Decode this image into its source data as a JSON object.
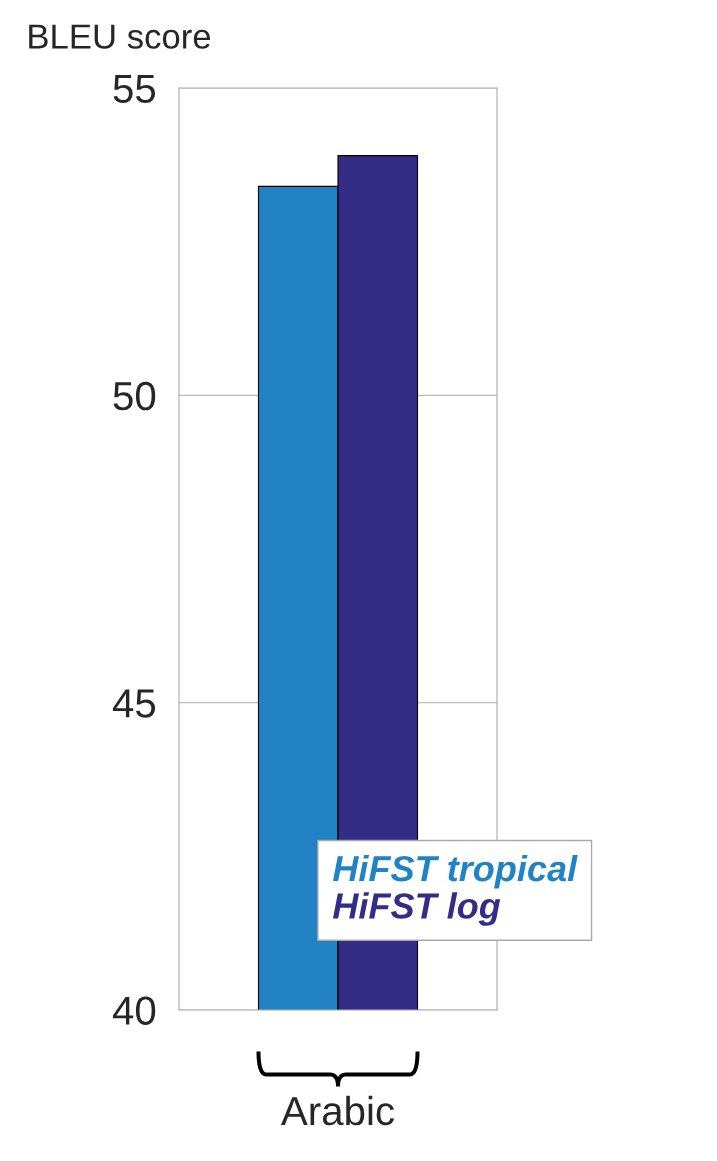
{
  "chart_data": {
    "type": "bar",
    "ylabel": "BLEU score",
    "categories": [
      "Arabic"
    ],
    "series": [
      {
        "name": "HiFST tropical",
        "color": "#2183c4",
        "values": [
          53.4
        ]
      },
      {
        "name": "HiFST log",
        "color": "#332d85",
        "values": [
          53.9
        ]
      }
    ],
    "ylim": [
      40,
      55
    ],
    "yticks": [
      40,
      45,
      50,
      55
    ],
    "grid": "y",
    "legend": "bottom right"
  }
}
